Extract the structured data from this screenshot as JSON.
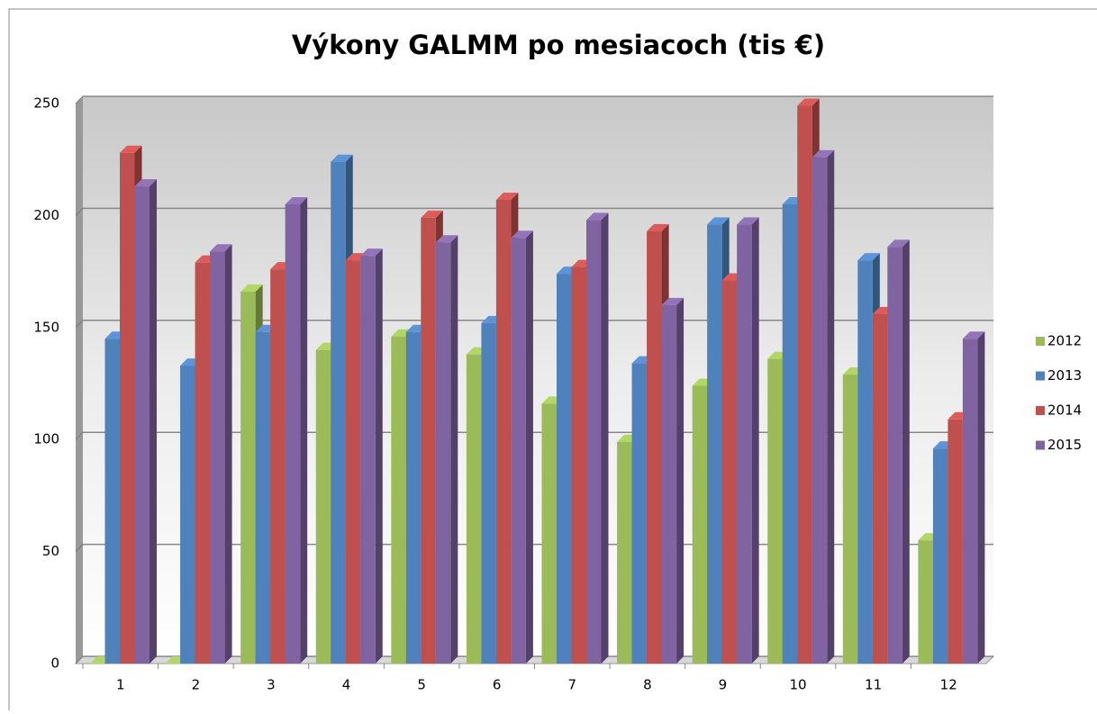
{
  "chart_data": {
    "type": "bar3d",
    "title": "Výkony GALMM po mesiacoch (tis €)",
    "categories": [
      "1",
      "2",
      "3",
      "4",
      "5",
      "6",
      "7",
      "8",
      "9",
      "10",
      "11",
      "12"
    ],
    "series": [
      {
        "name": "2012",
        "color": "#9bbb59",
        "values": [
          0,
          0,
          166,
          140,
          146,
          138,
          116,
          99,
          124,
          136,
          129,
          55
        ]
      },
      {
        "name": "2013",
        "color": "#4f81bd",
        "values": [
          145,
          133,
          148,
          224,
          148,
          152,
          174,
          134,
          196,
          205,
          180,
          96
        ]
      },
      {
        "name": "2014",
        "color": "#c0504d",
        "values": [
          228,
          179,
          176,
          180,
          199,
          207,
          177,
          193,
          171,
          249,
          156,
          109
        ]
      },
      {
        "name": "2015",
        "color": "#8064a2",
        "values": [
          213,
          184,
          205,
          182,
          188,
          190,
          198,
          160,
          196,
          226,
          186,
          145
        ]
      }
    ],
    "ylim": [
      0,
      250
    ],
    "yticks": [
      0,
      50,
      100,
      150,
      200,
      250
    ],
    "grid": true,
    "legend": "right"
  }
}
